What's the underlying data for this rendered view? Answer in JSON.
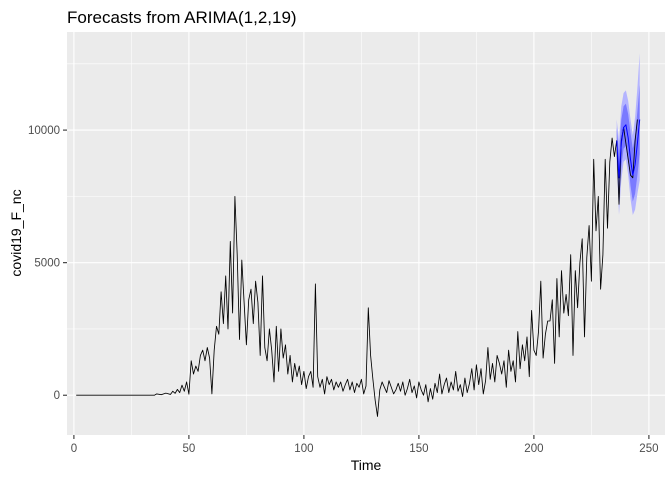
{
  "chart_data": {
    "type": "line",
    "title": "Forecasts from ARIMA(1,2,19)",
    "xlabel": "Time",
    "ylabel": "covid19_F_nc",
    "xlim": [
      -3,
      257
    ],
    "ylim": [
      -1500,
      13700
    ],
    "x_ticks": [
      0,
      50,
      100,
      150,
      200,
      250
    ],
    "y_ticks": [
      0,
      5000,
      10000
    ],
    "grid": true,
    "legend": "none",
    "colors": {
      "panel": "#ebebeb",
      "grid_major": "#ffffff",
      "line": "#000000",
      "forecast_mean": "#0000ff",
      "band_95": "#b4b4ff",
      "band_80": "#7a7aff"
    },
    "series": [
      {
        "values": [
          [
            1,
            0
          ],
          [
            35,
            0
          ],
          [
            36,
            50
          ],
          [
            38,
            20
          ],
          [
            40,
            80
          ],
          [
            42,
            30
          ],
          [
            43,
            150
          ],
          [
            44,
            70
          ],
          [
            45,
            220
          ],
          [
            46,
            100
          ],
          [
            47,
            380
          ],
          [
            48,
            150
          ],
          [
            49,
            500
          ],
          [
            50,
            40
          ],
          [
            51,
            1300
          ],
          [
            52,
            800
          ],
          [
            53,
            1100
          ],
          [
            54,
            900
          ],
          [
            55,
            1500
          ],
          [
            56,
            1700
          ],
          [
            57,
            1300
          ],
          [
            58,
            1800
          ],
          [
            59,
            1400
          ],
          [
            60,
            50
          ],
          [
            61,
            1700
          ],
          [
            62,
            2600
          ],
          [
            63,
            2300
          ],
          [
            64,
            3900
          ],
          [
            65,
            2700
          ],
          [
            66,
            4500
          ],
          [
            67,
            2500
          ],
          [
            68,
            5800
          ],
          [
            69,
            3100
          ],
          [
            70,
            7500
          ],
          [
            71,
            5300
          ],
          [
            72,
            2100
          ],
          [
            73,
            5100
          ],
          [
            74,
            3500
          ],
          [
            75,
            1900
          ],
          [
            76,
            3600
          ],
          [
            77,
            4000
          ],
          [
            78,
            2700
          ],
          [
            79,
            4300
          ],
          [
            80,
            3500
          ],
          [
            81,
            1500
          ],
          [
            82,
            4500
          ],
          [
            83,
            1800
          ],
          [
            84,
            1300
          ],
          [
            85,
            2500
          ],
          [
            86,
            1700
          ],
          [
            87,
            500
          ],
          [
            88,
            2600
          ],
          [
            89,
            900
          ],
          [
            90,
            2500
          ],
          [
            91,
            1400
          ],
          [
            92,
            1900
          ],
          [
            93,
            800
          ],
          [
            94,
            1500
          ],
          [
            95,
            500
          ],
          [
            96,
            1200
          ],
          [
            97,
            700
          ],
          [
            98,
            1100
          ],
          [
            99,
            400
          ],
          [
            100,
            900
          ],
          [
            101,
            250
          ],
          [
            102,
            700
          ],
          [
            103,
            900
          ],
          [
            104,
            300
          ],
          [
            105,
            4200
          ],
          [
            106,
            700
          ],
          [
            107,
            300
          ],
          [
            108,
            600
          ],
          [
            109,
            50
          ],
          [
            110,
            700
          ],
          [
            111,
            400
          ],
          [
            112,
            600
          ],
          [
            113,
            200
          ],
          [
            114,
            500
          ],
          [
            115,
            300
          ],
          [
            116,
            500
          ],
          [
            117,
            150
          ],
          [
            118,
            400
          ],
          [
            119,
            600
          ],
          [
            120,
            200
          ],
          [
            121,
            500
          ],
          [
            122,
            100
          ],
          [
            123,
            450
          ],
          [
            124,
            300
          ],
          [
            125,
            600
          ],
          [
            126,
            50
          ],
          [
            127,
            350
          ],
          [
            128,
            3300
          ],
          [
            129,
            1500
          ],
          [
            130,
            600
          ],
          [
            131,
            -200
          ],
          [
            132,
            -800
          ],
          [
            133,
            200
          ],
          [
            134,
            500
          ],
          [
            135,
            300
          ],
          [
            136,
            100
          ],
          [
            137,
            550
          ],
          [
            138,
            300
          ],
          [
            139,
            50
          ],
          [
            140,
            200
          ],
          [
            141,
            450
          ],
          [
            142,
            150
          ],
          [
            143,
            500
          ],
          [
            144,
            0
          ],
          [
            145,
            250
          ],
          [
            146,
            600
          ],
          [
            147,
            100
          ],
          [
            148,
            350
          ],
          [
            149,
            -100
          ],
          [
            150,
            500
          ],
          [
            151,
            200
          ],
          [
            152,
            0
          ],
          [
            153,
            400
          ],
          [
            154,
            -250
          ],
          [
            155,
            250
          ],
          [
            156,
            -150
          ],
          [
            157,
            450
          ],
          [
            158,
            100
          ],
          [
            159,
            800
          ],
          [
            160,
            50
          ],
          [
            161,
            400
          ],
          [
            162,
            650
          ],
          [
            163,
            100
          ],
          [
            164,
            500
          ],
          [
            165,
            200
          ],
          [
            166,
            900
          ],
          [
            167,
            150
          ],
          [
            168,
            400
          ],
          [
            169,
            -50
          ],
          [
            170,
            650
          ],
          [
            171,
            100
          ],
          [
            172,
            450
          ],
          [
            173,
            1000
          ],
          [
            174,
            200
          ],
          [
            175,
            1150
          ],
          [
            176,
            400
          ],
          [
            177,
            1000
          ],
          [
            178,
            50
          ],
          [
            179,
            550
          ],
          [
            180,
            1800
          ],
          [
            181,
            600
          ],
          [
            182,
            1200
          ],
          [
            183,
            500
          ],
          [
            184,
            1500
          ],
          [
            185,
            1200
          ],
          [
            186,
            800
          ],
          [
            187,
            1300
          ],
          [
            188,
            300
          ],
          [
            189,
            1700
          ],
          [
            190,
            900
          ],
          [
            191,
            1300
          ],
          [
            192,
            500
          ],
          [
            193,
            2400
          ],
          [
            194,
            1000
          ],
          [
            195,
            1900
          ],
          [
            196,
            1300
          ],
          [
            197,
            2200
          ],
          [
            198,
            700
          ],
          [
            199,
            3200
          ],
          [
            200,
            1700
          ],
          [
            201,
            1500
          ],
          [
            202,
            2400
          ],
          [
            203,
            4300
          ],
          [
            204,
            1400
          ],
          [
            205,
            2300
          ],
          [
            206,
            2800
          ],
          [
            207,
            2800
          ],
          [
            208,
            3600
          ],
          [
            209,
            1200
          ],
          [
            210,
            4400
          ],
          [
            211,
            2200
          ],
          [
            212,
            4700
          ],
          [
            213,
            3100
          ],
          [
            214,
            3800
          ],
          [
            215,
            3000
          ],
          [
            216,
            5300
          ],
          [
            217,
            1500
          ],
          [
            218,
            4700
          ],
          [
            219,
            3300
          ],
          [
            220,
            5000
          ],
          [
            221,
            5900
          ],
          [
            222,
            2200
          ],
          [
            223,
            5200
          ],
          [
            224,
            6400
          ],
          [
            225,
            4300
          ],
          [
            226,
            8900
          ],
          [
            227,
            6200
          ],
          [
            228,
            7500
          ],
          [
            229,
            4000
          ],
          [
            230,
            5300
          ],
          [
            231,
            8900
          ],
          [
            232,
            6300
          ],
          [
            233,
            8800
          ],
          [
            234,
            9700
          ],
          [
            235,
            9000
          ],
          [
            236,
            9600
          ],
          [
            237,
            7200
          ],
          [
            238,
            9600
          ],
          [
            239,
            10100
          ],
          [
            240,
            9500
          ],
          [
            241,
            8900
          ],
          [
            242,
            8300
          ],
          [
            243,
            8200
          ],
          [
            244,
            9600
          ],
          [
            245,
            10400
          ]
        ]
      }
    ],
    "forecast": {
      "x": [
        236,
        237,
        238,
        239,
        240,
        241,
        242,
        243,
        244,
        245,
        246
      ],
      "mean": [
        9600,
        8200,
        9500,
        10100,
        10200,
        9700,
        8900,
        8300,
        8700,
        9500,
        10400
      ],
      "lo80": [
        9100,
        7300,
        8600,
        9300,
        9400,
        8800,
        7900,
        7300,
        7600,
        8300,
        9100
      ],
      "hi80": [
        10100,
        9100,
        10400,
        10900,
        11000,
        10600,
        9900,
        9300,
        9800,
        10700,
        11700
      ],
      "lo95": [
        8800,
        6800,
        8100,
        8800,
        8900,
        8300,
        7400,
        6800,
        7000,
        7600,
        8100
      ],
      "hi95": [
        10400,
        9600,
        10900,
        11400,
        11500,
        11100,
        10400,
        9800,
        10500,
        11600,
        12900
      ]
    }
  }
}
